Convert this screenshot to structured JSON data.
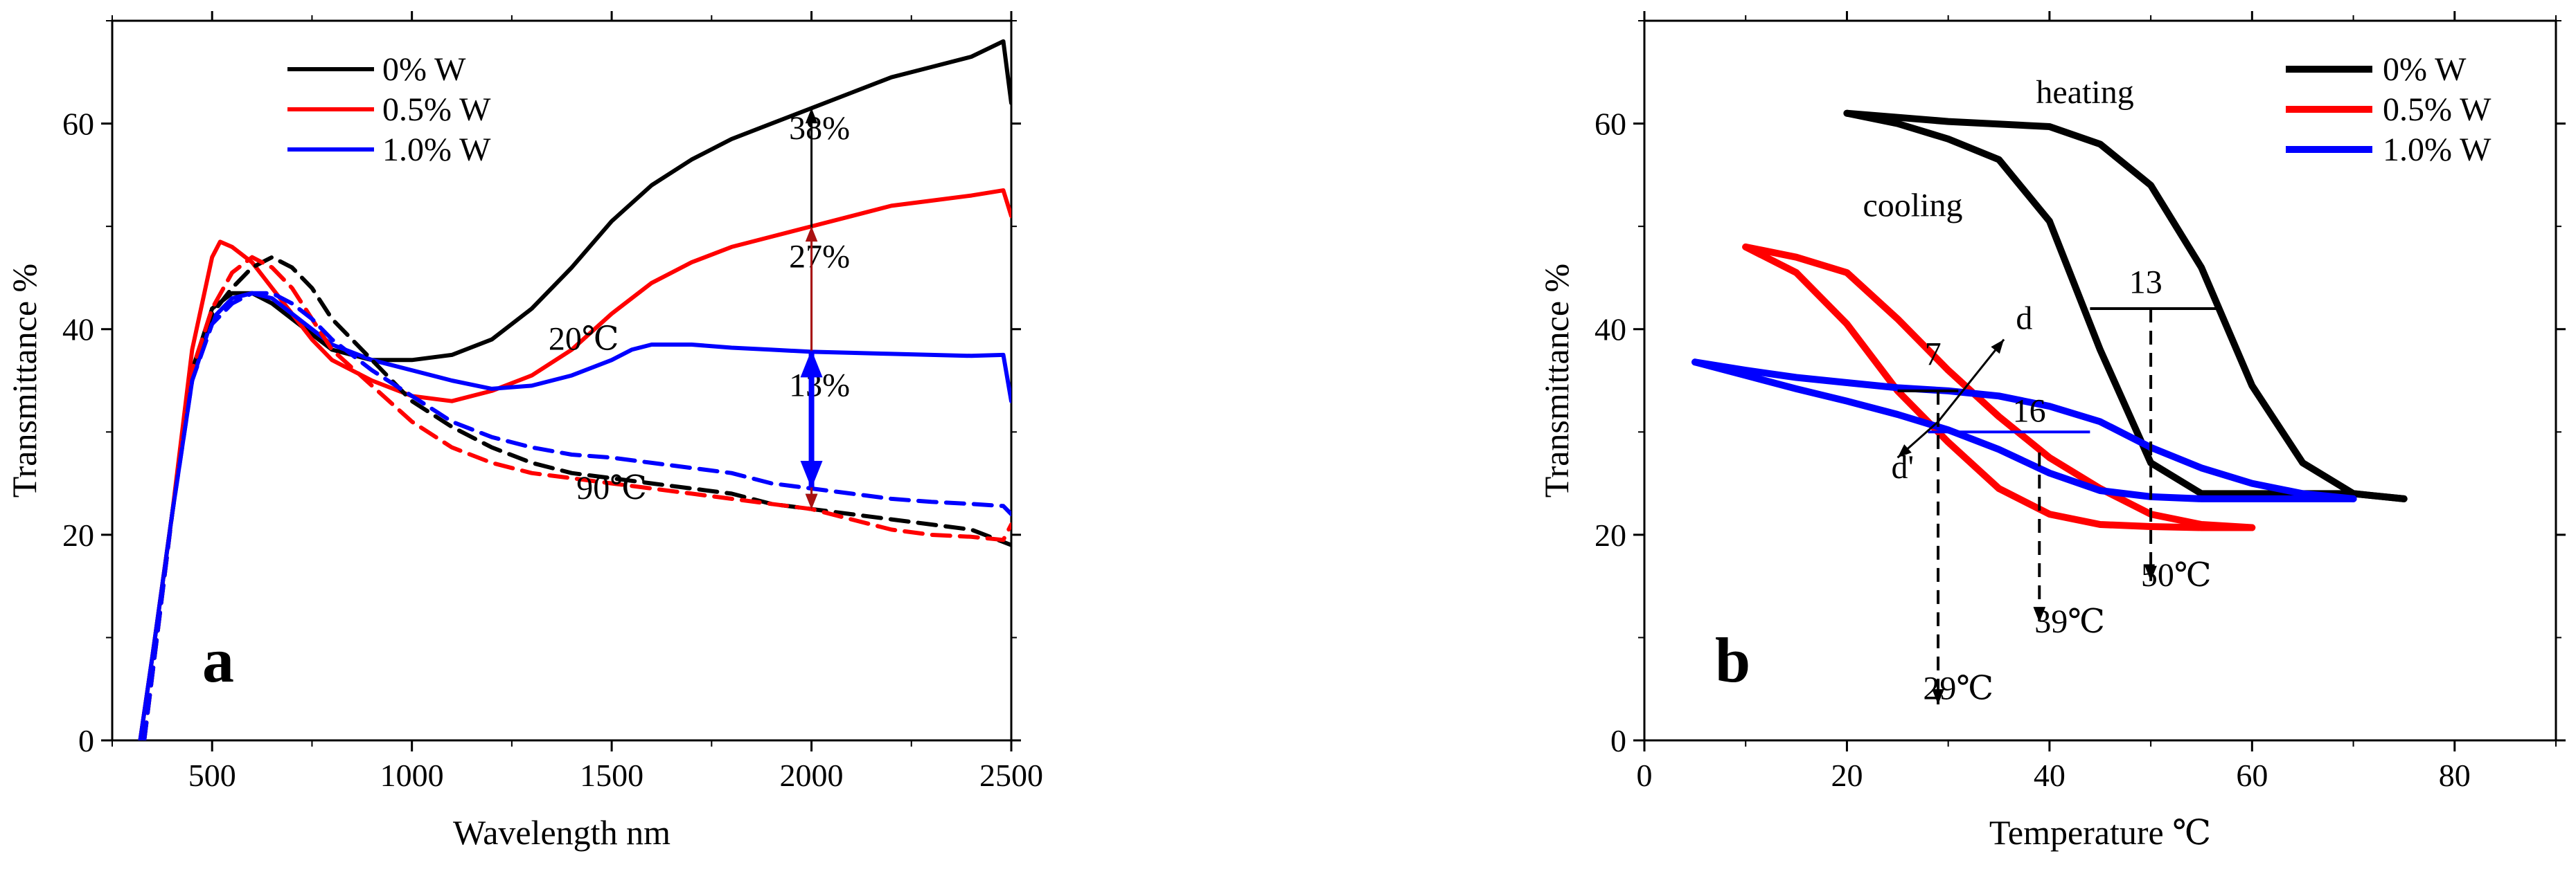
{
  "chart_data": [
    {
      "type": "line",
      "panel_label": "a",
      "xlabel": "Wavelength nm",
      "ylabel": "Transmittance %",
      "xlim": [
        250,
        2500
      ],
      "ylim": [
        0,
        70
      ],
      "xticks": [
        500,
        1000,
        1500,
        2000,
        2500
      ],
      "yticks": [
        0,
        20,
        40,
        60
      ],
      "legend": {
        "placement": "top-left",
        "entries": [
          "0% W",
          "0.5% W",
          "1.0% W"
        ]
      },
      "series": [
        {
          "name": "0% W",
          "condition": "20℃",
          "style": "solid",
          "color": "#000000",
          "x": [
            320,
            350,
            400,
            450,
            500,
            550,
            600,
            650,
            700,
            750,
            800,
            850,
            900,
            1000,
            1100,
            1200,
            1300,
            1400,
            1500,
            1600,
            1700,
            1800,
            1900,
            2000,
            2100,
            2200,
            2300,
            2400,
            2480,
            2500
          ],
          "y": [
            0,
            8,
            22,
            36,
            42,
            43.5,
            43.5,
            42.5,
            41,
            39.5,
            38,
            37.5,
            37,
            37,
            37.5,
            39,
            42,
            46,
            50.5,
            54,
            56.5,
            58.5,
            60,
            61.5,
            63,
            64.5,
            65.5,
            66.5,
            68,
            62
          ]
        },
        {
          "name": "0.5% W",
          "condition": "20℃",
          "style": "solid",
          "color": "#ff0000",
          "x": [
            320,
            350,
            400,
            450,
            500,
            520,
            550,
            600,
            650,
            700,
            750,
            800,
            900,
            1000,
            1100,
            1200,
            1300,
            1400,
            1500,
            1600,
            1700,
            1800,
            1900,
            2000,
            2100,
            2200,
            2300,
            2400,
            2480,
            2500
          ],
          "y": [
            0,
            8,
            22,
            38,
            47,
            48.5,
            48,
            46.5,
            44,
            41.5,
            39,
            37,
            35,
            33.5,
            33,
            34,
            35.5,
            38,
            41.5,
            44.5,
            46.5,
            48,
            49,
            50,
            51,
            52,
            52.5,
            53,
            53.5,
            51
          ]
        },
        {
          "name": "1.0% W",
          "condition": "20℃",
          "style": "solid",
          "color": "#0000ff",
          "x": [
            320,
            350,
            400,
            450,
            500,
            550,
            600,
            650,
            700,
            750,
            800,
            900,
            1000,
            1100,
            1200,
            1300,
            1400,
            1500,
            1550,
            1600,
            1700,
            1800,
            1900,
            2000,
            2100,
            2200,
            2300,
            2400,
            2480,
            2500
          ],
          "y": [
            0,
            8,
            22,
            35,
            41,
            43,
            43.5,
            43,
            41.5,
            40,
            38.5,
            37,
            36,
            35,
            34.2,
            34.5,
            35.5,
            37,
            38,
            38.5,
            38.5,
            38.2,
            38,
            37.8,
            37.7,
            37.6,
            37.5,
            37.4,
            37.5,
            33
          ]
        },
        {
          "name": "0% W",
          "condition": "90℃",
          "style": "dashed",
          "color": "#000000",
          "x": [
            330,
            400,
            450,
            500,
            550,
            600,
            650,
            700,
            750,
            800,
            900,
            1000,
            1100,
            1200,
            1300,
            1400,
            1500,
            1600,
            1700,
            1800,
            1900,
            2000,
            2100,
            2200,
            2300,
            2400,
            2500
          ],
          "y": [
            0,
            22,
            36,
            41.5,
            44,
            46,
            47,
            46,
            44,
            41,
            37,
            33,
            30.5,
            28.5,
            27,
            26,
            25.5,
            25,
            24.5,
            24,
            23,
            22.5,
            22,
            21.5,
            21,
            20.5,
            19
          ]
        },
        {
          "name": "0.5% W",
          "condition": "90℃",
          "style": "dashed",
          "color": "#ff0000",
          "x": [
            330,
            400,
            450,
            500,
            550,
            600,
            650,
            700,
            750,
            800,
            900,
            1000,
            1100,
            1200,
            1300,
            1400,
            1500,
            1600,
            1700,
            1800,
            1900,
            2000,
            2100,
            2200,
            2300,
            2400,
            2480,
            2500
          ],
          "y": [
            0,
            22,
            36,
            42,
            45.5,
            47,
            46,
            44,
            41,
            38,
            34.5,
            31,
            28.5,
            27,
            26,
            25.5,
            25,
            24.5,
            24,
            23.5,
            23,
            22.5,
            21.5,
            20.5,
            20,
            19.8,
            19.5,
            21
          ]
        },
        {
          "name": "1.0% W",
          "condition": "90℃",
          "style": "dashed",
          "color": "#0000ff",
          "x": [
            330,
            400,
            450,
            500,
            550,
            600,
            650,
            700,
            750,
            800,
            900,
            1000,
            1100,
            1200,
            1300,
            1400,
            1500,
            1600,
            1700,
            1800,
            1900,
            2000,
            2100,
            2200,
            2300,
            2400,
            2480,
            2500
          ],
          "y": [
            0,
            22,
            35,
            40.5,
            42.5,
            43.5,
            43.5,
            42.5,
            41,
            39,
            36,
            33.5,
            31,
            29.5,
            28.5,
            27.8,
            27.5,
            27,
            26.5,
            26,
            25,
            24.5,
            24,
            23.5,
            23.2,
            23,
            22.8,
            22
          ]
        }
      ],
      "annotations": [
        {
          "text": "20℃",
          "x": 1430,
          "y": 38
        },
        {
          "text": "90℃",
          "x": 1500,
          "y": 23.5
        },
        {
          "text": "38%",
          "x": 2020,
          "y": 58.5
        },
        {
          "text": "27%",
          "x": 2020,
          "y": 46
        },
        {
          "text": "13%",
          "x": 2020,
          "y": 33.5
        }
      ],
      "arrows": [
        {
          "x": 2000,
          "from": 22.5,
          "to": 61.5,
          "color": "#000000"
        },
        {
          "x": 2000,
          "from": 22.5,
          "to": 50,
          "color": "#aa1111"
        },
        {
          "x": 2000,
          "from": 24.5,
          "to": 38,
          "color": "#0000ff"
        }
      ]
    },
    {
      "type": "line",
      "panel_label": "b",
      "xlabel": "Temperature ℃",
      "ylabel": "Transmittance %",
      "xlim": [
        0,
        90
      ],
      "ylim": [
        0,
        70
      ],
      "xticks": [
        0,
        20,
        40,
        60,
        80
      ],
      "yticks": [
        0,
        20,
        40,
        60
      ],
      "legend": {
        "placement": "top-right",
        "entries": [
          "0% W",
          "0.5% W",
          "1.0% W"
        ]
      },
      "series": [
        {
          "name": "0% W",
          "branch": "heating",
          "color": "#000000",
          "x": [
            20,
            30,
            40,
            45,
            50,
            55,
            60,
            65,
            70,
            75
          ],
          "y": [
            61,
            60.2,
            59.7,
            58,
            54,
            46,
            34.5,
            27,
            24,
            23.5
          ]
        },
        {
          "name": "0% W",
          "branch": "cooling",
          "color": "#000000",
          "x": [
            20,
            25,
            30,
            35,
            40,
            45,
            50,
            55,
            60,
            65,
            70,
            75
          ],
          "y": [
            61,
            60,
            58.5,
            56.5,
            50.5,
            38,
            27,
            24,
            24,
            24,
            24,
            23.5
          ]
        },
        {
          "name": "0.5% W",
          "branch": "heating",
          "color": "#ff0000",
          "x": [
            10,
            15,
            20,
            25,
            30,
            35,
            40,
            45,
            50,
            55,
            60
          ],
          "y": [
            48,
            47,
            45.5,
            41,
            36,
            31.5,
            27.5,
            24.5,
            22,
            21,
            20.7
          ]
        },
        {
          "name": "0.5% W",
          "branch": "cooling",
          "color": "#ff0000",
          "x": [
            10,
            15,
            20,
            25,
            30,
            35,
            40,
            45,
            50,
            55,
            60
          ],
          "y": [
            48,
            45.5,
            40.5,
            34,
            29,
            24.5,
            22,
            21,
            20.8,
            20.7,
            20.7
          ]
        },
        {
          "name": "1.0% W",
          "branch": "heating",
          "color": "#0000ff",
          "x": [
            5,
            10,
            15,
            20,
            25,
            30,
            35,
            40,
            45,
            50,
            55,
            60,
            65,
            70
          ],
          "y": [
            36.8,
            36,
            35.3,
            34.8,
            34.3,
            34,
            33.5,
            32.5,
            31,
            28.5,
            26.5,
            25,
            24,
            23.5
          ]
        },
        {
          "name": "1.0% W",
          "branch": "cooling",
          "color": "#0000ff",
          "x": [
            5,
            10,
            15,
            20,
            25,
            30,
            35,
            40,
            45,
            50,
            55,
            60,
            65,
            70
          ],
          "y": [
            36.8,
            35.5,
            34.2,
            33,
            31.7,
            30.2,
            28.3,
            26,
            24.3,
            23.7,
            23.5,
            23.5,
            23.5,
            23.5
          ]
        }
      ],
      "annotations": [
        {
          "text": "heating",
          "x": 43.5,
          "y": 62
        },
        {
          "text": "cooling",
          "x": 26.5,
          "y": 51
        },
        {
          "text": "13",
          "x": 49.5,
          "y": 43.5
        },
        {
          "text": "7",
          "x": 28.5,
          "y": 36.5
        },
        {
          "text": "16",
          "x": 38,
          "y": 31
        },
        {
          "text": "d",
          "x": 37.5,
          "y": 40
        },
        {
          "text": "d'",
          "x": 25.5,
          "y": 25.5
        },
        {
          "text": "50℃",
          "x": 52.5,
          "y": 15
        },
        {
          "text": "39℃",
          "x": 42,
          "y": 10.5
        },
        {
          "text": "29℃",
          "x": 31,
          "y": 4
        }
      ],
      "hysteresis_widths": [
        {
          "label": "13",
          "from": 44,
          "to": 57,
          "y": 42
        },
        {
          "label": "7",
          "from": 25,
          "to": 31,
          "y": 34
        },
        {
          "label": "16",
          "from": 28,
          "to": 44,
          "y": 30
        }
      ],
      "transition_temperatures": [
        {
          "label": "50℃",
          "x": 50,
          "from_y": 42
        },
        {
          "label": "39℃",
          "x": 39,
          "from_y": 28
        },
        {
          "label": "29℃",
          "x": 29,
          "from_y": 34
        }
      ]
    }
  ]
}
